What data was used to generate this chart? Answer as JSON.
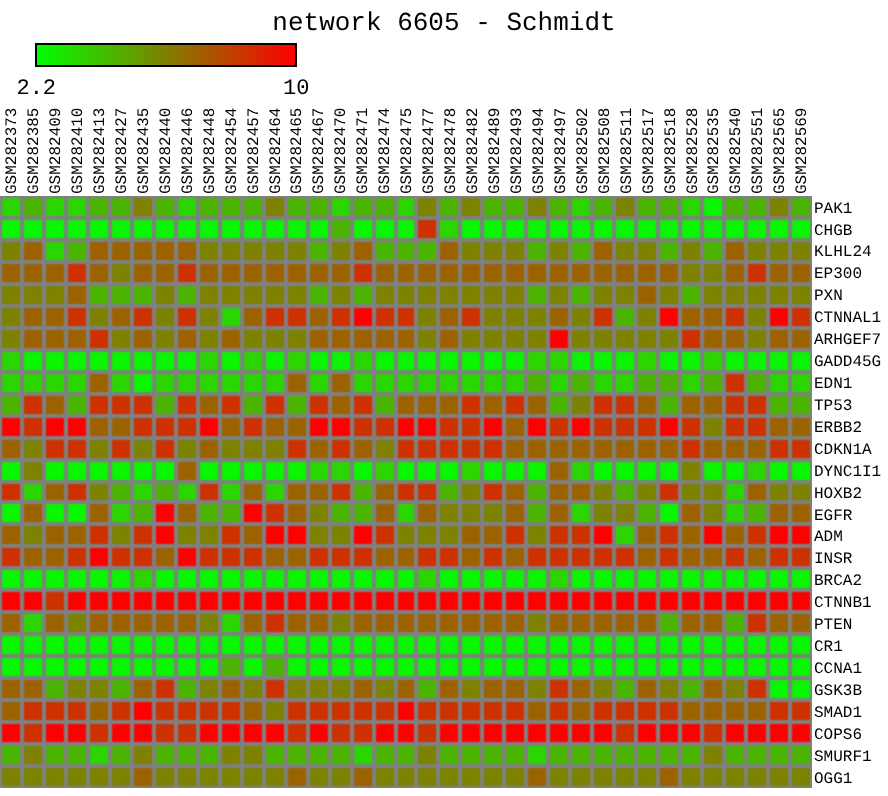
{
  "chart_data": {
    "type": "heatmap",
    "title": "network 6605 - Schmidt",
    "categories": [
      "GSM282373",
      "GSM282385",
      "GSM282409",
      "GSM282410",
      "GSM282413",
      "GSM282427",
      "GSM282435",
      "GSM282440",
      "GSM282446",
      "GSM282448",
      "GSM282454",
      "GSM282457",
      "GSM282464",
      "GSM282465",
      "GSM282467",
      "GSM282470",
      "GSM282471",
      "GSM282474",
      "GSM282475",
      "GSM282477",
      "GSM282478",
      "GSM282482",
      "GSM282489",
      "GSM282493",
      "GSM282494",
      "GSM282497",
      "GSM282502",
      "GSM282508",
      "GSM282511",
      "GSM282517",
      "GSM282518",
      "GSM282528",
      "GSM282535",
      "GSM282540",
      "GSM282551",
      "GSM282565",
      "GSM282569"
    ],
    "y_categories": [
      "PAK1",
      "CHGB",
      "KLHL24",
      "EP300",
      "PXN",
      "CTNNAL1",
      "ARHGEF7",
      "GADD45G",
      "EDN1",
      "TP53",
      "ERBB2",
      "CDKN1A",
      "DYNC1I1",
      "HOXB2",
      "EGFR",
      "ADM",
      "INSR",
      "BRCA2",
      "CTNNB1",
      "PTEN",
      "CR1",
      "CCNA1",
      "GSK3B",
      "SMAD1",
      "COPS6",
      "SMURF1",
      "OGG1"
    ],
    "cells": [
      [
        3.5,
        4.5,
        3.5,
        3.5,
        4.5,
        4.5,
        6,
        4.5,
        3.5,
        4.5,
        4.5,
        4.5,
        6,
        4.5,
        4.5,
        3.5,
        4.5,
        4.5,
        3.5,
        6,
        4.5,
        6,
        4.5,
        4.5,
        6,
        4.5,
        3.5,
        4.5,
        6,
        4.5,
        4.5,
        3.5,
        2.5,
        4.5,
        4.5,
        6,
        4.5
      ],
      [
        2.5,
        2.5,
        2.5,
        2.5,
        2.5,
        2.5,
        2.5,
        2.5,
        2.5,
        2.5,
        2.5,
        2.5,
        2.5,
        2.5,
        2.5,
        4.5,
        2.5,
        2.5,
        2.5,
        8.5,
        3.5,
        2.5,
        2.5,
        2.5,
        2.5,
        2.5,
        2.5,
        2.5,
        2.5,
        2.5,
        2.5,
        2.5,
        2.5,
        2.5,
        2.5,
        2.5,
        2.5
      ],
      [
        6,
        7,
        3.5,
        4.5,
        7,
        7,
        7,
        7,
        7,
        6,
        6,
        6,
        6,
        6,
        4.5,
        6,
        7,
        4.5,
        4.5,
        4.5,
        7,
        6,
        6,
        6,
        4.5,
        6,
        4.5,
        7,
        6,
        6,
        4.5,
        6,
        4.5,
        7,
        6,
        6,
        6
      ],
      [
        7,
        7,
        7,
        8.5,
        7,
        6,
        7,
        7,
        8.5,
        7,
        7,
        7,
        7,
        7,
        7,
        7,
        8.5,
        7,
        7,
        7,
        7,
        7,
        7,
        7,
        7,
        7,
        7,
        7,
        7,
        7,
        7,
        6,
        6,
        7,
        8.5,
        7,
        7
      ],
      [
        6,
        6,
        6,
        7,
        4.5,
        4.5,
        4.5,
        6,
        4.5,
        6,
        6,
        6,
        6,
        6,
        4.5,
        6,
        4.5,
        6,
        6,
        6,
        6,
        6,
        6,
        6,
        4.5,
        6,
        4.5,
        6,
        6,
        7,
        6,
        4.5,
        6,
        6,
        6,
        6,
        6
      ],
      [
        6,
        7,
        7,
        8.5,
        6,
        7,
        8.5,
        6,
        8.5,
        6,
        3.5,
        7,
        8.5,
        8.5,
        7,
        8.5,
        10,
        8.5,
        8.5,
        6,
        7,
        8.5,
        6,
        6,
        6,
        7,
        6,
        8.5,
        4.5,
        6,
        10,
        7,
        7,
        8.5,
        6,
        10,
        8.5
      ],
      [
        6,
        7,
        7,
        7,
        8.5,
        6,
        7,
        6,
        7,
        6,
        7,
        6,
        6,
        6,
        7,
        7,
        7,
        7,
        7,
        6,
        7,
        6,
        6,
        6,
        6,
        10,
        6,
        6,
        6,
        6,
        6,
        8.5,
        7,
        7,
        6,
        7,
        7
      ],
      [
        3.5,
        2.5,
        2.5,
        2.5,
        2.5,
        2.5,
        2.5,
        2.5,
        2.5,
        3.5,
        2.5,
        3.5,
        2.5,
        3.5,
        2.5,
        2.5,
        3.5,
        2.5,
        2.5,
        2.5,
        2.5,
        2.5,
        2.5,
        2.5,
        3.5,
        3.5,
        2.5,
        2.5,
        2.5,
        3.5,
        2.5,
        2.5,
        3.5,
        2.5,
        2.5,
        2.5,
        2.5
      ],
      [
        3.5,
        3.5,
        3.5,
        3.5,
        7,
        3.5,
        2.5,
        3.5,
        3.5,
        3.5,
        3.5,
        3.5,
        3.5,
        7,
        3.5,
        7,
        3.5,
        3.5,
        3.5,
        3.5,
        3.5,
        3.5,
        3.5,
        3.5,
        4.5,
        3.5,
        4.5,
        3.5,
        3.5,
        4.5,
        4.5,
        3.5,
        4.5,
        8.5,
        4.5,
        3.5,
        3.5
      ],
      [
        4.5,
        8.5,
        7,
        4.5,
        8.5,
        8.5,
        8.5,
        4.5,
        8.5,
        7,
        8.5,
        4.5,
        8.5,
        4.5,
        8.5,
        7,
        8.5,
        4.5,
        7,
        7,
        7,
        8.5,
        7,
        8.5,
        7,
        4.5,
        6,
        8.5,
        8.5,
        7,
        4.5,
        7,
        7,
        8.5,
        8.5,
        4.5,
        4.5
      ],
      [
        10,
        8.5,
        10,
        10,
        7,
        7,
        8.5,
        8.5,
        8.5,
        10,
        7,
        8.5,
        7,
        7,
        10,
        10,
        8.5,
        8.5,
        10,
        10,
        8.5,
        8.5,
        10,
        7,
        10,
        8.5,
        10,
        8.5,
        8.5,
        8.5,
        10,
        8.5,
        6,
        8.5,
        8.5,
        7,
        7
      ],
      [
        7,
        6,
        8.5,
        8.5,
        6,
        8.5,
        6,
        8.5,
        6,
        7,
        6,
        6,
        6,
        8.5,
        7,
        8.5,
        7,
        6,
        8.5,
        8.5,
        8.5,
        8.5,
        8.5,
        7,
        7,
        7,
        7,
        7,
        7,
        7,
        7,
        8.5,
        7,
        7,
        7,
        8.5,
        8.5
      ],
      [
        2.5,
        6,
        2.5,
        2.5,
        2.5,
        2.5,
        2.5,
        2.5,
        7,
        2.5,
        2.5,
        2.5,
        2.5,
        2.5,
        3.5,
        3.5,
        2.5,
        3.5,
        2.5,
        2.5,
        2.5,
        3.5,
        2.5,
        2.5,
        2.5,
        7,
        3.5,
        2.5,
        2.5,
        2.5,
        2.5,
        6,
        2.5,
        2.5,
        3.5,
        2.5,
        2.5
      ],
      [
        8.5,
        3.5,
        7,
        8.5,
        6,
        4.5,
        3.5,
        4.5,
        3.5,
        8.5,
        3.5,
        7,
        3.5,
        7,
        7,
        8.5,
        4.5,
        7,
        8.5,
        8.5,
        4.5,
        6,
        8.5,
        7,
        4.5,
        7,
        7,
        6,
        4.5,
        6,
        8.5,
        6,
        6,
        3.5,
        7,
        6,
        6
      ],
      [
        2.5,
        7,
        2.5,
        2.5,
        7,
        3.5,
        4.5,
        10,
        7,
        4.5,
        4.5,
        10,
        8.5,
        7,
        6,
        4.5,
        4.5,
        7,
        3.5,
        7,
        6,
        6,
        6,
        7,
        4.5,
        7,
        3.5,
        6,
        6,
        4.5,
        2.5,
        7,
        6,
        3.5,
        4.5,
        7,
        7
      ],
      [
        7,
        6,
        7,
        7,
        8.5,
        6,
        8.5,
        10,
        6,
        6,
        8.5,
        7,
        10,
        10,
        6,
        6,
        10,
        8.5,
        6,
        6,
        6,
        7,
        7,
        8.5,
        6,
        8.5,
        8.5,
        10,
        3.5,
        7,
        8.5,
        7,
        10,
        7,
        8.5,
        10,
        10
      ],
      [
        8.5,
        7,
        7,
        8.5,
        10,
        8.5,
        8.5,
        7,
        10,
        8.5,
        8.5,
        8.5,
        7,
        7,
        8.5,
        8.5,
        8.5,
        7,
        7,
        8.5,
        8.5,
        7,
        8.5,
        7,
        8.5,
        8.5,
        8.5,
        8.5,
        8.5,
        7,
        8.5,
        7,
        7,
        8.5,
        7,
        8.5,
        8.5
      ],
      [
        2.5,
        2.5,
        2.5,
        2.5,
        2.5,
        2.5,
        3.5,
        2.5,
        2.5,
        2.5,
        2.5,
        2.5,
        2.5,
        2.5,
        2.5,
        2.5,
        2.5,
        2.5,
        2.5,
        3.5,
        2.5,
        2.5,
        2.5,
        2.5,
        2.5,
        3.5,
        2.5,
        2.5,
        2.5,
        2.5,
        2.5,
        2.5,
        2.5,
        2.5,
        2.5,
        2.5,
        2.5
      ],
      [
        10,
        10,
        8.5,
        10,
        10,
        10,
        10,
        10,
        10,
        10,
        10,
        10,
        10,
        10,
        10,
        10,
        10,
        10,
        10,
        10,
        10,
        10,
        10,
        10,
        10,
        10,
        10,
        10,
        10,
        10,
        10,
        10,
        10,
        10,
        10,
        10,
        10
      ],
      [
        7,
        3.5,
        7,
        6,
        7,
        7,
        7,
        7,
        7,
        6,
        3.5,
        7,
        8.5,
        7,
        7,
        6,
        7,
        7,
        7,
        7,
        7,
        7,
        7,
        7,
        6,
        7,
        7,
        7,
        7,
        7,
        4.5,
        7,
        7,
        4.5,
        8.5,
        7,
        7
      ],
      [
        2.5,
        2.5,
        2.5,
        2.5,
        2.5,
        2.5,
        2.5,
        2.5,
        2.5,
        2.5,
        2.5,
        2.5,
        2.5,
        2.5,
        2.5,
        2.5,
        2.5,
        2.5,
        2.5,
        2.5,
        2.5,
        2.5,
        2.5,
        2.5,
        2.5,
        2.5,
        2.5,
        2.5,
        2.5,
        2.5,
        2.5,
        2.5,
        2.5,
        2.5,
        2.5,
        2.5,
        2.5
      ],
      [
        2.5,
        2.5,
        2.5,
        2.5,
        2.5,
        2.5,
        2.5,
        2.5,
        2.5,
        2.5,
        4.5,
        2.5,
        4.5,
        2.5,
        2.5,
        2.5,
        2.5,
        2.5,
        2.5,
        2.5,
        2.5,
        2.5,
        2.5,
        2.5,
        2.5,
        2.5,
        2.5,
        2.5,
        2.5,
        2.5,
        2.5,
        2.5,
        2.5,
        2.5,
        2.5,
        2.5,
        2.5
      ],
      [
        7,
        7,
        4.5,
        6,
        6,
        4.5,
        7,
        8.5,
        4.5,
        6,
        7,
        6,
        8.5,
        6,
        6,
        6,
        7,
        6,
        7,
        4.5,
        7,
        6,
        7,
        7,
        6,
        8.5,
        7,
        6,
        4.5,
        7,
        6,
        4.5,
        7,
        6,
        8.5,
        2.5,
        2.5
      ],
      [
        7,
        8.5,
        8.5,
        8.5,
        7,
        8.5,
        10,
        8.5,
        8.5,
        8.5,
        8.5,
        7,
        6,
        8.5,
        8.5,
        8.5,
        8.5,
        8.5,
        10,
        8.5,
        8.5,
        8.5,
        8.5,
        8.5,
        7,
        8.5,
        7,
        8.5,
        8.5,
        8.5,
        8.5,
        7,
        7,
        7,
        7,
        8.5,
        8.5
      ],
      [
        10,
        8.5,
        10,
        10,
        8.5,
        10,
        10,
        8.5,
        8.5,
        10,
        10,
        10,
        10,
        8.5,
        10,
        8.5,
        8.5,
        10,
        10,
        8.5,
        10,
        10,
        10,
        10,
        10,
        10,
        10,
        10,
        8.5,
        10,
        10,
        10,
        8.5,
        10,
        10,
        10,
        10
      ],
      [
        4.5,
        6,
        4.5,
        4.5,
        3.5,
        4.5,
        6,
        4.5,
        4.5,
        4.5,
        6,
        6,
        4.5,
        4.5,
        4.5,
        4.5,
        3.5,
        4.5,
        4.5,
        6,
        4.5,
        4.5,
        4.5,
        4.5,
        3.5,
        4.5,
        4.5,
        4.5,
        4.5,
        4.5,
        4.5,
        4.5,
        6,
        4.5,
        4.5,
        4.5,
        4.5
      ],
      [
        6,
        6,
        6,
        6,
        6,
        6,
        7,
        6,
        6,
        6,
        6,
        6,
        6,
        7,
        6,
        6,
        7,
        6,
        6,
        6,
        6,
        6,
        6,
        6,
        7,
        6,
        6,
        6,
        6,
        6,
        7,
        6,
        6,
        6,
        6,
        6,
        6
      ]
    ],
    "clim": [
      2.2,
      10
    ],
    "cticks": [
      2.2,
      10
    ]
  }
}
